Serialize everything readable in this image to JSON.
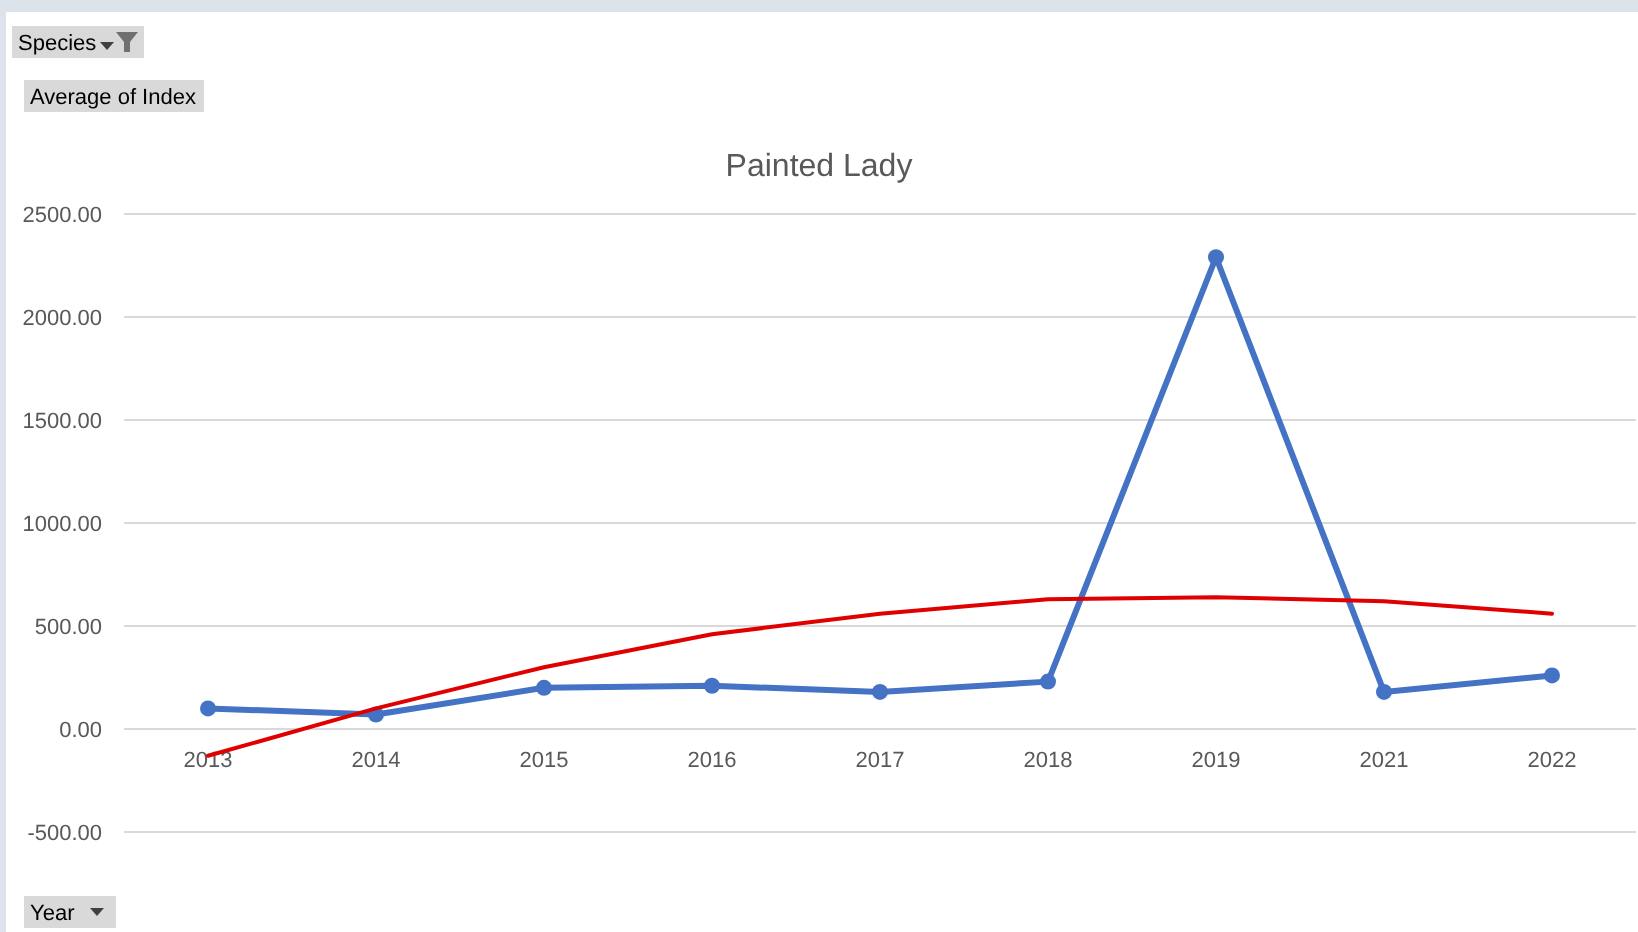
{
  "chart_data": {
    "type": "line",
    "title": "Painted Lady",
    "xlabel": "Year",
    "ylabel": "Average of Index",
    "annotations": [
      "Species"
    ],
    "categories": [
      "2013",
      "2014",
      "2015",
      "2016",
      "2017",
      "2018",
      "2019",
      "2021",
      "2022"
    ],
    "series": [
      {
        "type": "line",
        "color": "#4472c4",
        "marker": "circle",
        "values": [
          100,
          70,
          200,
          210,
          180,
          230,
          2290,
          180,
          260
        ]
      },
      {
        "type": "line",
        "color": "#e00000",
        "marker": "none",
        "values": [
          -130,
          100,
          300,
          460,
          560,
          630,
          640,
          620,
          560
        ]
      }
    ],
    "ylim": [
      -500,
      2500
    ],
    "yticks": [
      {
        "value": -500,
        "label": "-500.00"
      },
      {
        "value": 0,
        "label": "0.00"
      },
      {
        "value": 500,
        "label": "500.00"
      },
      {
        "value": 1000,
        "label": "1000.00"
      },
      {
        "value": 1500,
        "label": "1500.00"
      },
      {
        "value": 2000,
        "label": "2000.00"
      },
      {
        "value": 2500,
        "label": "2500.00"
      }
    ],
    "grid": "y"
  }
}
